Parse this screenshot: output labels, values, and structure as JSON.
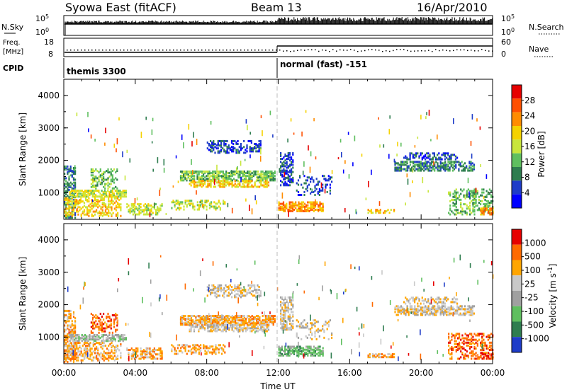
{
  "header": {
    "station": "Syowa East (fitACF)",
    "beam": "Beam 13",
    "date": "16/Apr/2010"
  },
  "status_panels": {
    "nsky_label": "N.Sky",
    "nsky_ticks": [
      "10^5",
      "10^0"
    ],
    "nsearch_label": "N.Search",
    "nsearch_ticks": [
      "10^5",
      "10^0"
    ],
    "freq_label_top": "Freq.",
    "freq_label_bottom": "[MHz]",
    "freq_ticks": [
      "18",
      "8"
    ],
    "nave_label": "Nave",
    "nave_ticks": [
      "60",
      "0"
    ],
    "cpid_label": "CPID",
    "cpid_segments": [
      {
        "label": "themis 3300",
        "start_hour": 0
      },
      {
        "label": "normal (fast) -151",
        "start_hour": 12
      }
    ]
  },
  "x_axis": {
    "title": "Time UT",
    "ticks": [
      "00:00",
      "04:00",
      "08:00",
      "12:00",
      "16:00",
      "20:00",
      "00:00"
    ],
    "range_hours": [
      0,
      24
    ]
  },
  "colors": {
    "power": [
      "#0000ff",
      "#1e3cc8",
      "#2e7d4f",
      "#5fbf5f",
      "#c8e63c",
      "#f5d200",
      "#ff8c00",
      "#ff5000",
      "#e60000"
    ],
    "velocity": [
      "#1e3cc8",
      "#2e7d4f",
      "#5fbf5f",
      "#a0a0a0",
      "#c8c8c8",
      "#ffa500",
      "#ff6a00",
      "#e60000"
    ]
  },
  "chart_data": [
    {
      "type": "heatmap",
      "panel": "power",
      "ylabel": "Slant Range [km]",
      "xlabel": "Time UT",
      "xlim": [
        0,
        24
      ],
      "ylim": [
        180,
        4500
      ],
      "y_ticks": [
        "1000",
        "2000",
        "3000",
        "4000"
      ],
      "colorbar": {
        "label": "Power [dB]",
        "ticks": [
          "28",
          "24",
          "20",
          "16",
          "12",
          "8",
          "4"
        ],
        "range": [
          0,
          30
        ]
      },
      "bands": [
        {
          "t0": 0.0,
          "t1": 0.6,
          "r0": 200,
          "r1": 1800,
          "level": 2,
          "density": 0.5
        },
        {
          "t0": 0.3,
          "t1": 3.5,
          "r0": 850,
          "r1": 1050,
          "level": 4,
          "density": 0.7
        },
        {
          "t0": 0.0,
          "t1": 3.2,
          "r0": 250,
          "r1": 800,
          "level": 5,
          "density": 0.45
        },
        {
          "t0": 1.5,
          "t1": 3.0,
          "r0": 1100,
          "r1": 1700,
          "level": 3,
          "density": 0.35
        },
        {
          "t0": 3.5,
          "t1": 5.5,
          "r0": 300,
          "r1": 650,
          "level": 4,
          "density": 0.5
        },
        {
          "t0": 6.5,
          "t1": 11.8,
          "r0": 1350,
          "r1": 1650,
          "level": 3,
          "density": 0.75
        },
        {
          "t0": 7.0,
          "t1": 11.5,
          "r0": 1150,
          "r1": 1350,
          "level": 5,
          "density": 0.55
        },
        {
          "t0": 6.0,
          "t1": 9.0,
          "r0": 450,
          "r1": 750,
          "level": 4,
          "density": 0.4
        },
        {
          "t0": 8.0,
          "t1": 11.0,
          "r0": 2200,
          "r1": 2600,
          "level": 1,
          "density": 0.4
        },
        {
          "t0": 12.0,
          "t1": 14.5,
          "r0": 400,
          "r1": 700,
          "level": 6,
          "density": 0.65
        },
        {
          "t0": 12.1,
          "t1": 12.8,
          "r0": 1200,
          "r1": 2200,
          "level": 1,
          "density": 0.55
        },
        {
          "t0": 13.0,
          "t1": 15.0,
          "r0": 900,
          "r1": 1500,
          "level": 1,
          "density": 0.25
        },
        {
          "t0": 17.0,
          "t1": 18.5,
          "r0": 350,
          "r1": 450,
          "level": 5,
          "density": 0.6
        },
        {
          "t0": 18.5,
          "t1": 23.0,
          "r0": 1650,
          "r1": 1950,
          "level": 2,
          "density": 0.6
        },
        {
          "t0": 19.0,
          "t1": 22.0,
          "r0": 2000,
          "r1": 2200,
          "level": 1,
          "density": 0.35
        },
        {
          "t0": 21.5,
          "t1": 24.0,
          "r0": 300,
          "r1": 1100,
          "level": 3,
          "density": 0.35
        },
        {
          "t0": 23.3,
          "t1": 24.0,
          "r0": 300,
          "r1": 500,
          "level": 6,
          "density": 0.6
        }
      ]
    },
    {
      "type": "heatmap",
      "panel": "velocity",
      "ylabel": "Slant Range [km]",
      "xlabel": "Time UT",
      "xlim": [
        0,
        24
      ],
      "ylim": [
        180,
        4500
      ],
      "y_ticks": [
        "1000",
        "2000",
        "3000",
        "4000"
      ],
      "colorbar": {
        "label": "Velocity [m s^-1]",
        "ticks": [
          "1000",
          "500",
          "100",
          "25",
          "-25",
          "-100",
          "-500",
          "-1000"
        ],
        "range": [
          -1000,
          1000
        ]
      },
      "bands": [
        {
          "t0": 0.0,
          "t1": 0.6,
          "r0": 200,
          "r1": 1800,
          "level": 5,
          "density": 0.5
        },
        {
          "t0": 0.3,
          "t1": 3.5,
          "r0": 850,
          "r1": 1050,
          "level": 3,
          "density": 0.7
        },
        {
          "t0": 0.0,
          "t1": 3.2,
          "r0": 250,
          "r1": 800,
          "level": 5,
          "density": 0.45
        },
        {
          "t0": 1.5,
          "t1": 3.0,
          "r0": 1100,
          "r1": 1700,
          "level": 6,
          "density": 0.35
        },
        {
          "t0": 3.5,
          "t1": 5.5,
          "r0": 300,
          "r1": 650,
          "level": 5,
          "density": 0.5
        },
        {
          "t0": 6.5,
          "t1": 11.8,
          "r0": 1350,
          "r1": 1650,
          "level": 5,
          "density": 0.75
        },
        {
          "t0": 7.0,
          "t1": 11.5,
          "r0": 1150,
          "r1": 1350,
          "level": 4,
          "density": 0.55
        },
        {
          "t0": 6.0,
          "t1": 9.0,
          "r0": 450,
          "r1": 750,
          "level": 5,
          "density": 0.4
        },
        {
          "t0": 8.0,
          "t1": 11.0,
          "r0": 2200,
          "r1": 2600,
          "level": 4,
          "density": 0.4
        },
        {
          "t0": 12.0,
          "t1": 14.5,
          "r0": 400,
          "r1": 700,
          "level": 2,
          "density": 0.65
        },
        {
          "t0": 12.1,
          "t1": 12.8,
          "r0": 1200,
          "r1": 2200,
          "level": 4,
          "density": 0.55
        },
        {
          "t0": 13.0,
          "t1": 15.0,
          "r0": 900,
          "r1": 1500,
          "level": 4,
          "density": 0.25
        },
        {
          "t0": 17.0,
          "t1": 18.5,
          "r0": 350,
          "r1": 450,
          "level": 5,
          "density": 0.6
        },
        {
          "t0": 18.5,
          "t1": 23.0,
          "r0": 1650,
          "r1": 1950,
          "level": 4,
          "density": 0.6
        },
        {
          "t0": 19.0,
          "t1": 22.0,
          "r0": 2000,
          "r1": 2200,
          "level": 4,
          "density": 0.35
        },
        {
          "t0": 21.5,
          "t1": 24.0,
          "r0": 300,
          "r1": 1100,
          "level": 6,
          "density": 0.35
        },
        {
          "t0": 23.3,
          "t1": 24.0,
          "r0": 300,
          "r1": 500,
          "level": 7,
          "density": 0.6
        }
      ]
    }
  ]
}
